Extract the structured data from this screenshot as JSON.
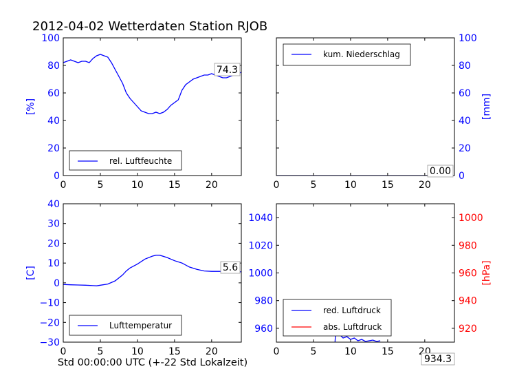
{
  "title": "2012-04-02 Wetterdaten Station RJOB",
  "xlabel": "Std 00:00:00 UTC (+-22 Std Lokalzeit)",
  "colors": {
    "primary": "#0000ff",
    "secondary": "#ff0000",
    "text": "#000000"
  },
  "chart_data": [
    {
      "type": "line",
      "ylabel": "[%]",
      "xlim": [
        0,
        24
      ],
      "ylim": [
        0,
        100
      ],
      "x_ticks": [
        "0",
        "5",
        "10",
        "15",
        "20"
      ],
      "y_ticks": [
        "0",
        "20",
        "40",
        "60",
        "80",
        "100"
      ],
      "legend": "lower-left",
      "current_value": "74.3",
      "series": [
        {
          "name": "rel. Luftfeuchte",
          "color": "#0000ff",
          "x": [
            0,
            0.5,
            1,
            1.5,
            2,
            2.5,
            3,
            3.5,
            4,
            4.5,
            5,
            5.5,
            6,
            6.5,
            7,
            7.5,
            8,
            8.5,
            9,
            9.5,
            10,
            10.5,
            11,
            11.5,
            12,
            12.5,
            13,
            13.5,
            14,
            14.5,
            15,
            15.5,
            16,
            16.5,
            17,
            17.5,
            18,
            18.5,
            19,
            19.5,
            20,
            20.5,
            21,
            21.5,
            22,
            22.5,
            23,
            23.5,
            24
          ],
          "y": [
            82,
            83,
            84,
            83,
            82,
            83,
            83,
            82,
            85,
            87,
            88,
            87,
            86,
            82,
            77,
            72,
            67,
            60,
            56,
            53,
            50,
            47,
            46,
            45,
            45,
            46,
            45,
            46,
            48,
            51,
            53,
            55,
            62,
            66,
            68,
            70,
            71,
            72,
            73,
            73,
            74,
            73,
            72,
            71,
            71,
            72,
            73,
            74,
            75
          ]
        }
      ]
    },
    {
      "type": "line",
      "ylabel": "[mm]",
      "xlim": [
        0,
        24
      ],
      "ylim": [
        0,
        100
      ],
      "x_ticks": [
        "0",
        "5",
        "10",
        "15",
        "20"
      ],
      "y_ticks": [
        "0",
        "20",
        "40",
        "60",
        "80",
        "100"
      ],
      "legend": "top-left",
      "current_value": "0.00",
      "series": [
        {
          "name": "kum. Niederschlag",
          "color": "#0000ff",
          "x": [
            0,
            24
          ],
          "y": [
            0,
            0
          ]
        }
      ]
    },
    {
      "type": "line",
      "ylabel": "[C]",
      "xlim": [
        0,
        24
      ],
      "ylim": [
        -30,
        40
      ],
      "x_ticks": [
        "0",
        "5",
        "10",
        "15",
        "20"
      ],
      "y_ticks": [
        "−30",
        "−20",
        "−10",
        "0",
        "10",
        "20",
        "30",
        "40"
      ],
      "legend": "lower-left",
      "current_value": "5.6",
      "series": [
        {
          "name": "Lufttemperatur",
          "color": "#0000ff",
          "x": [
            0,
            1,
            2,
            3,
            4,
            4.5,
            5,
            6,
            7,
            8,
            8.5,
            9,
            10,
            11,
            12,
            12.5,
            13,
            14,
            15,
            16,
            17,
            18,
            19,
            20,
            21,
            22,
            23,
            24
          ],
          "y": [
            -0.8,
            -1,
            -1.1,
            -1.2,
            -1.4,
            -1.5,
            -1.2,
            -0.6,
            1,
            4,
            6,
            7.5,
            9.5,
            12,
            13.5,
            14,
            14,
            12.8,
            11.2,
            10,
            8,
            6.8,
            6,
            5.8,
            5.8,
            5.8,
            5.7,
            5.6
          ]
        }
      ]
    },
    {
      "type": "line",
      "ylabel": "[hPa]",
      "xlim": [
        0,
        24
      ],
      "ylim": [
        950,
        1050
      ],
      "ylim_right": [
        910,
        1010
      ],
      "x_ticks": [
        "0",
        "5",
        "10",
        "15",
        "20"
      ],
      "y_ticks": [
        "960",
        "980",
        "1000",
        "1020",
        "1040"
      ],
      "y_ticks_right": [
        "920",
        "940",
        "960",
        "980",
        "1000"
      ],
      "legend": "lower-left",
      "current_value": "934.3",
      "series": [
        {
          "name": "red. Luftdruck",
          "color": "#0000ff",
          "x": [
            7.9,
            8,
            8.3,
            8.6,
            9,
            9.5,
            10,
            10.5,
            11,
            11.5,
            12,
            12.5,
            13,
            13.5,
            14
          ],
          "y": [
            950,
            958,
            956,
            955,
            953,
            954,
            952,
            953,
            951,
            952,
            950.5,
            951,
            951.5,
            950.5,
            951
          ]
        },
        {
          "name": "abs. Luftdruck",
          "color": "#ff0000",
          "x": [],
          "y": []
        }
      ]
    }
  ]
}
